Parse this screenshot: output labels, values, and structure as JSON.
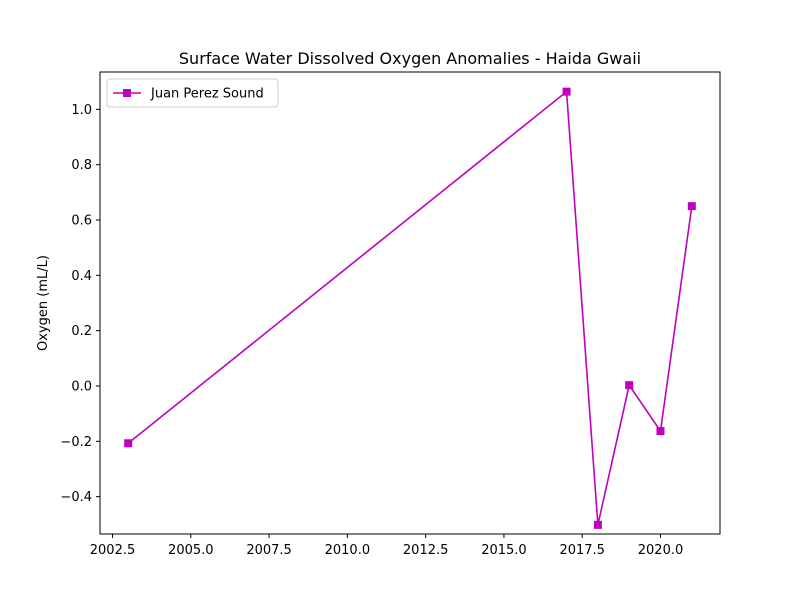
{
  "chart_data": {
    "type": "line",
    "title": "Surface Water Dissolved Oxygen Anomalies - Haida Gwaii",
    "xlabel": "",
    "ylabel": "Oxygen (mL/L)",
    "xlim": [
      2002.1,
      2021.9
    ],
    "ylim": [
      -0.535,
      1.135
    ],
    "x_ticks": [
      2002.5,
      2005.0,
      2007.5,
      2010.0,
      2012.5,
      2015.0,
      2017.5,
      2020.0
    ],
    "x_tick_labels": [
      "2002.5",
      "2005.0",
      "2007.5",
      "2010.0",
      "2012.5",
      "2015.0",
      "2017.5",
      "2020.0"
    ],
    "y_ticks": [
      -0.4,
      -0.2,
      0.0,
      0.2,
      0.4,
      0.6,
      0.8,
      1.0
    ],
    "y_tick_labels": [
      "−0.4",
      "−0.2",
      "0.0",
      "0.2",
      "0.4",
      "0.6",
      "0.8",
      "1.0"
    ],
    "grid": false,
    "legend_position": "upper-left",
    "series": [
      {
        "name": "Juan Perez Sound",
        "color": "#bf00bf",
        "marker": "square",
        "x": [
          2003,
          2017,
          2018,
          2019,
          2020,
          2021
        ],
        "y": [
          -0.207,
          1.064,
          -0.502,
          0.003,
          -0.163,
          0.65
        ]
      }
    ]
  }
}
